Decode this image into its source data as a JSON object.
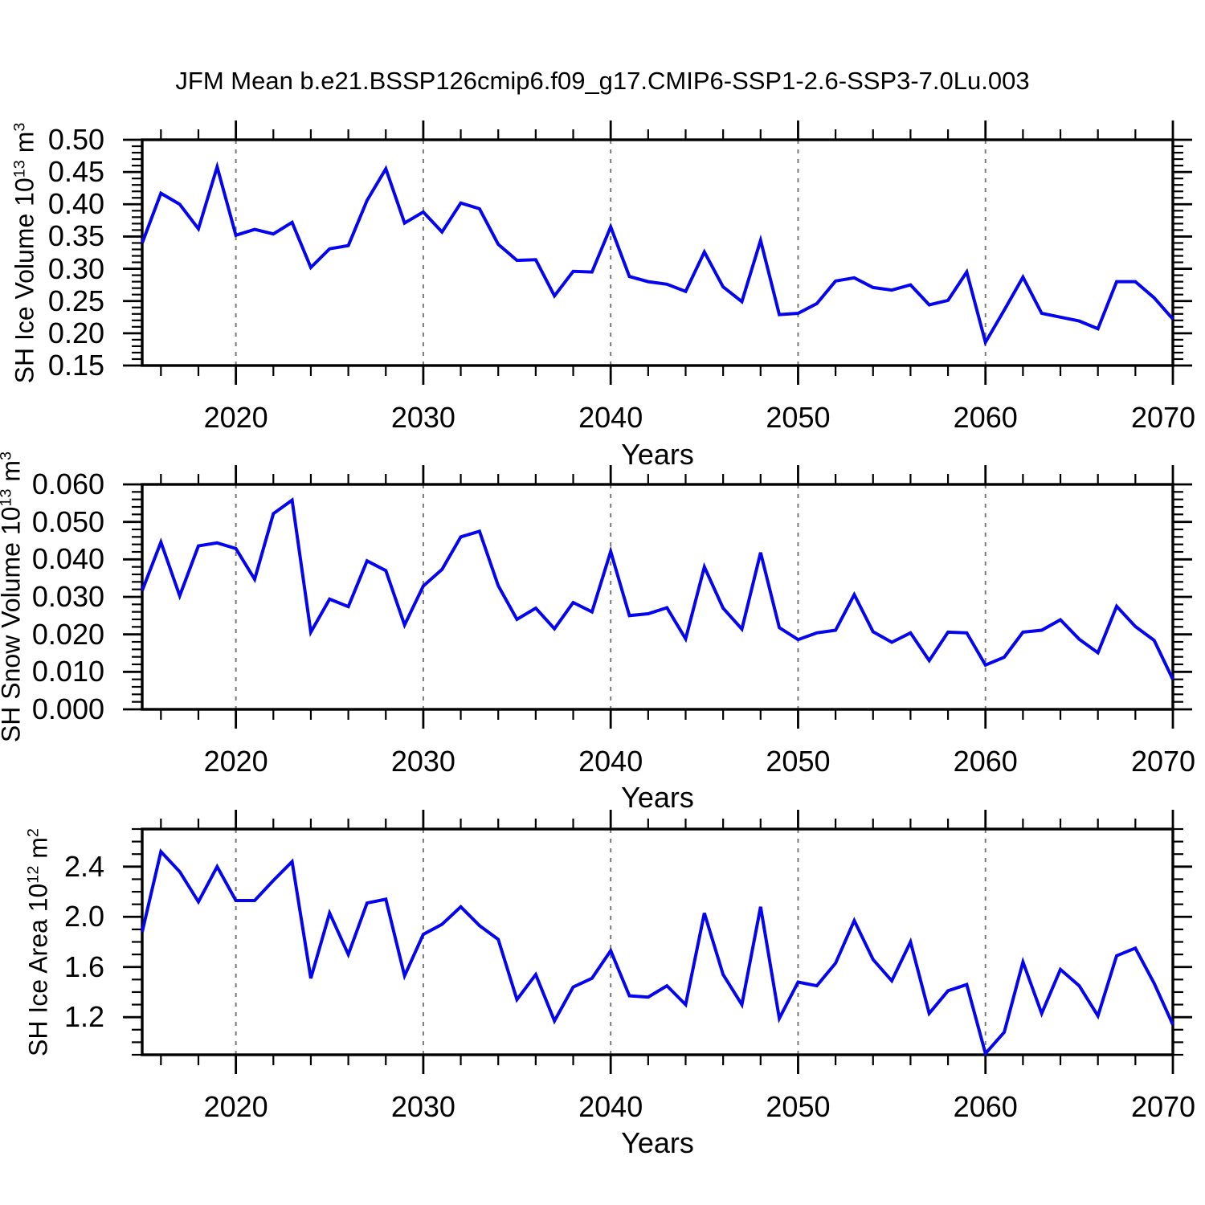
{
  "figure": {
    "title": "JFM Mean b.e21.BSSP126cmip6.f09_g17.CMIP6-SSP1-2.6-SSP3-7.0Lu.003"
  },
  "style": {
    "line_color": "#0404f0",
    "axis_color": "#000000",
    "grid_color": "#7a7a7a",
    "text_color": "#000000",
    "background": "#ffffff"
  },
  "x_axis": {
    "title": "Years",
    "range": [
      2015,
      2070
    ],
    "major_ticks": [
      2020,
      2030,
      2040,
      2050,
      2060,
      2070
    ],
    "major_tick_labels": [
      "2020",
      "2030",
      "2040",
      "2050",
      "2060",
      "2070"
    ],
    "minor_tick_step": 2,
    "gridline_years": [
      2020,
      2030,
      2040,
      2050,
      2060
    ],
    "years": [
      2015,
      2016,
      2017,
      2018,
      2019,
      2020,
      2021,
      2022,
      2023,
      2024,
      2025,
      2026,
      2027,
      2028,
      2029,
      2030,
      2031,
      2032,
      2033,
      2034,
      2035,
      2036,
      2037,
      2038,
      2039,
      2040,
      2041,
      2042,
      2043,
      2044,
      2045,
      2046,
      2047,
      2048,
      2049,
      2050,
      2051,
      2052,
      2053,
      2054,
      2055,
      2056,
      2057,
      2058,
      2059,
      2060,
      2061,
      2062,
      2063,
      2064,
      2065,
      2066,
      2067,
      2068,
      2069,
      2070
    ]
  },
  "chart_data": [
    {
      "type": "line",
      "name": "sh-ice-volume",
      "ylabel_text": "SH Ice Volume 10^13 m^3",
      "ylabel_parts": [
        {
          "text": "SH Ice Volume 10",
          "sup": false
        },
        {
          "text": "13",
          "sup": true
        },
        {
          "text": " m",
          "sup": false
        },
        {
          "text": "3",
          "sup": true
        }
      ],
      "ylim": [
        0.15,
        0.5
      ],
      "y_major_ticks": [
        0.15,
        0.2,
        0.25,
        0.3,
        0.35,
        0.4,
        0.45,
        0.5
      ],
      "y_tick_labels": [
        "0.15",
        "0.20",
        "0.25",
        "0.30",
        "0.35",
        "0.40",
        "0.45",
        "0.50"
      ],
      "y_minor_step": 0.01,
      "values": [
        0.34,
        0.417,
        0.4,
        0.362,
        0.458,
        0.352,
        0.361,
        0.354,
        0.372,
        0.302,
        0.331,
        0.336,
        0.406,
        0.455,
        0.371,
        0.388,
        0.357,
        0.402,
        0.393,
        0.338,
        0.313,
        0.314,
        0.258,
        0.296,
        0.295,
        0.365,
        0.288,
        0.28,
        0.276,
        0.265,
        0.326,
        0.272,
        0.249,
        0.344,
        0.229,
        0.231,
        0.246,
        0.281,
        0.286,
        0.271,
        0.267,
        0.275,
        0.244,
        0.251,
        0.295,
        0.186,
        0.236,
        0.287,
        0.231,
        0.225,
        0.219,
        0.207,
        0.28,
        0.28,
        0.255,
        0.222
      ]
    },
    {
      "type": "line",
      "name": "sh-snow-volume",
      "ylabel_text": "SH Snow Volume 10^13 m^3",
      "ylabel_parts": [
        {
          "text": "SH Snow Volume 10",
          "sup": false
        },
        {
          "text": "13",
          "sup": true
        },
        {
          "text": " m",
          "sup": false
        },
        {
          "text": "3",
          "sup": true
        }
      ],
      "ylim": [
        0.0,
        0.06
      ],
      "y_major_ticks": [
        0.0,
        0.01,
        0.02,
        0.03,
        0.04,
        0.05,
        0.06
      ],
      "y_tick_labels": [
        "0.000",
        "0.010",
        "0.020",
        "0.030",
        "0.040",
        "0.050",
        "0.060"
      ],
      "y_minor_step": 0.002,
      "values": [
        0.0317,
        0.0446,
        0.0303,
        0.0436,
        0.0444,
        0.0429,
        0.0347,
        0.0522,
        0.0558,
        0.0206,
        0.0294,
        0.0274,
        0.0396,
        0.037,
        0.0225,
        0.0329,
        0.0373,
        0.046,
        0.0475,
        0.033,
        0.024,
        0.027,
        0.0215,
        0.0285,
        0.026,
        0.0421,
        0.025,
        0.0255,
        0.0271,
        0.0188,
        0.038,
        0.027,
        0.0214,
        0.0418,
        0.0218,
        0.0186,
        0.0204,
        0.0211,
        0.0306,
        0.0207,
        0.0179,
        0.0204,
        0.013,
        0.0206,
        0.0204,
        0.0118,
        0.0139,
        0.0206,
        0.0211,
        0.0239,
        0.0187,
        0.0151,
        0.0275,
        0.0221,
        0.0184,
        0.008
      ]
    },
    {
      "type": "line",
      "name": "sh-ice-area",
      "ylabel_text": "SH Ice Area 10^12 m^2",
      "ylabel_parts": [
        {
          "text": "SH Ice Area 10",
          "sup": false
        },
        {
          "text": "12",
          "sup": true
        },
        {
          "text": " m",
          "sup": false
        },
        {
          "text": "2",
          "sup": true
        }
      ],
      "ylim": [
        0.9,
        2.7
      ],
      "y_major_ticks": [
        1.2,
        1.6,
        2.0,
        2.4
      ],
      "y_tick_labels": [
        "1.2",
        "1.6",
        "2.0",
        "2.4"
      ],
      "y_minor_step": 0.1,
      "values": [
        1.88,
        2.52,
        2.36,
        2.12,
        2.4,
        2.13,
        2.13,
        2.29,
        2.44,
        1.51,
        2.03,
        1.7,
        2.11,
        2.14,
        1.53,
        1.86,
        1.94,
        2.08,
        1.93,
        1.82,
        1.34,
        1.54,
        1.17,
        1.44,
        1.51,
        1.73,
        1.37,
        1.36,
        1.45,
        1.3,
        2.03,
        1.54,
        1.3,
        2.08,
        1.19,
        1.48,
        1.45,
        1.63,
        1.97,
        1.66,
        1.49,
        1.8,
        1.23,
        1.41,
        1.46,
        0.91,
        1.08,
        1.64,
        1.23,
        1.58,
        1.45,
        1.21,
        1.69,
        1.75,
        1.47,
        1.14
      ]
    }
  ]
}
